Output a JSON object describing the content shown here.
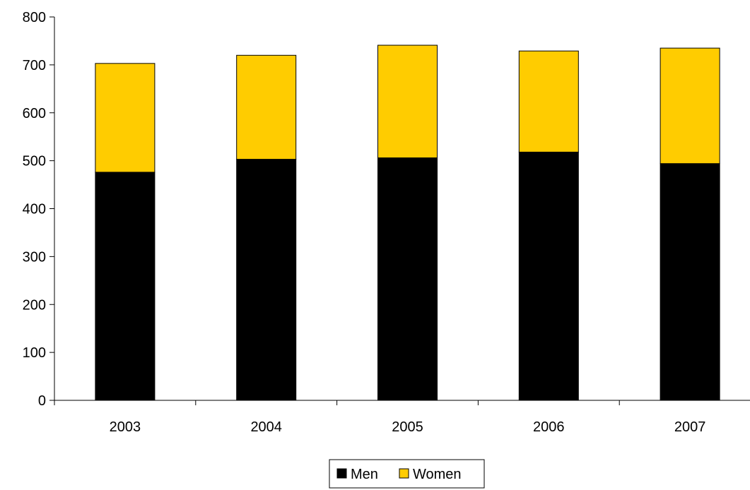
{
  "chart_data": {
    "type": "bar",
    "stacked": true,
    "categories": [
      "2003",
      "2004",
      "2005",
      "2006",
      "2007"
    ],
    "series": [
      {
        "name": "Men",
        "values": [
          476,
          503,
          506,
          518,
          494
        ],
        "color": "#000000"
      },
      {
        "name": "Women",
        "values": [
          227,
          217,
          235,
          211,
          241
        ],
        "color": "#FFCC00"
      }
    ],
    "ylim": [
      0,
      800
    ],
    "yticks": [
      0,
      100,
      200,
      300,
      400,
      500,
      600,
      700,
      800
    ],
    "title": "",
    "xlabel": "",
    "ylabel": "",
    "grid": false,
    "legend_position": "bottom"
  }
}
